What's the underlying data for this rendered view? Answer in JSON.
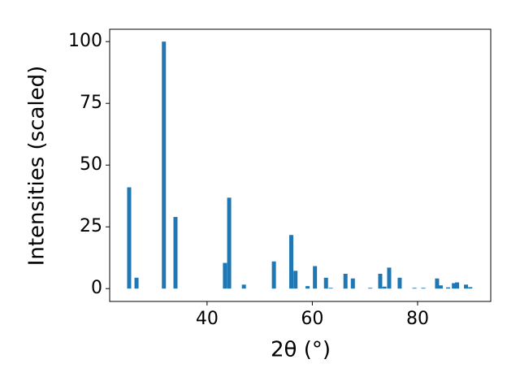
{
  "chart_data": {
    "type": "bar",
    "x_label": "2θ (°)",
    "y_label": "Intensities (scaled)",
    "x": [
      25.2,
      26.6,
      31.8,
      34.0,
      43.4,
      44.2,
      47.0,
      52.7,
      56.0,
      56.8,
      59.1,
      60.5,
      62.6,
      63.5,
      66.3,
      67.7,
      71.0,
      72.9,
      73.7,
      74.6,
      76.6,
      79.4,
      81.1,
      83.7,
      84.4,
      85.8,
      86.9,
      87.5,
      89.2,
      90.0
    ],
    "values": [
      41,
      4.4,
      100,
      29,
      10.4,
      36.8,
      1.6,
      11,
      21.7,
      7.2,
      1,
      9.1,
      4.4,
      0.3,
      6,
      4.1,
      0.3,
      6,
      0.8,
      8.5,
      4.4,
      0.3,
      0.3,
      4.1,
      1.3,
      0.5,
      2.2,
      2.5,
      1.6,
      0.6
    ],
    "color": "#1f77b4",
    "xlim": [
      21.5,
      93.9
    ],
    "ylim": [
      -5.2,
      105
    ],
    "xticks": [
      40,
      60,
      80
    ],
    "yticks": [
      0,
      25,
      50,
      75,
      100
    ],
    "grid": false
  }
}
